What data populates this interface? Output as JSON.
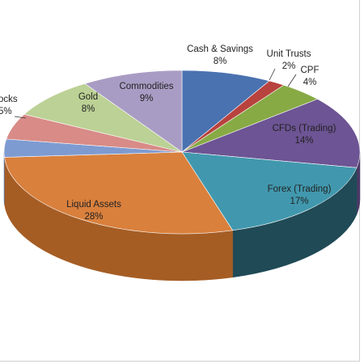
{
  "chart_data": {
    "type": "pie",
    "three_d": true,
    "title": "",
    "legend": "none",
    "slices": [
      {
        "label": "Cash & Savings",
        "value": 8,
        "value_label": "8%",
        "color": "#4a72b0",
        "side_color": "#2f4f82"
      },
      {
        "label": "Unit Trusts",
        "value": 1.5,
        "value_label": "2%",
        "color": "#b8423e",
        "side_color": "#7d2c29"
      },
      {
        "label": "CPF",
        "value": 4,
        "value_label": "4%",
        "color": "#87aa45",
        "side_color": "#5a7630"
      },
      {
        "label": "CFDs (Trading)",
        "value": 14,
        "value_label": "14%",
        "color": "#6d5494",
        "side_color": "#4a3866"
      },
      {
        "label": "Forex (Trading)",
        "value": 17,
        "value_label": "17%",
        "color": "#4198ae",
        "side_color": "#1f4a56"
      },
      {
        "label": "Liquid Assets",
        "value": 28,
        "value_label": "28%",
        "color": "#d9803d",
        "side_color": "#a55d24"
      },
      {
        "label": "",
        "value": 3.5,
        "value_label": "",
        "color": "#7e9bd1",
        "side_color": "#5a76a8"
      },
      {
        "label": "ocks",
        "value": 5,
        "value_label": "5%",
        "color": "#d88b87",
        "side_color": "#a96560"
      },
      {
        "label": "Gold",
        "value": 8,
        "value_label": "8%",
        "color": "#bcd195",
        "side_color": "#8fa36b"
      },
      {
        "label": "Commodities",
        "value": 9,
        "value_label": "9%",
        "color": "#a99cc4",
        "side_color": "#7d7198"
      }
    ]
  }
}
